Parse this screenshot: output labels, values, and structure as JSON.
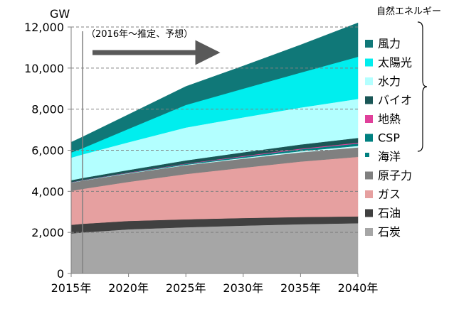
{
  "chart_data": {
    "type": "area",
    "stacked": true,
    "ylabel": "GW",
    "x": [
      2015,
      2016,
      2020,
      2025,
      2030,
      2035,
      2040
    ],
    "xtick_values": [
      2015,
      2020,
      2025,
      2030,
      2035,
      2040
    ],
    "xtick_labels": [
      "2015年",
      "2020年",
      "2025年",
      "2030年",
      "2035年",
      "2040年"
    ],
    "ylim": [
      0,
      12000
    ],
    "yticks": [
      0,
      2000,
      4000,
      6000,
      8000,
      10000,
      12000
    ],
    "ytick_labels": [
      "0",
      "2,000",
      "4,000",
      "6,000",
      "8,000",
      "10,000",
      "12,000"
    ],
    "grid": "dashed-horizontal",
    "legend_group_label": "自然エネルギー",
    "annotation": "（2016年～推定、予想）",
    "series": [
      {
        "name": "石炭",
        "color": "#a6a6a6",
        "values": [
          1950,
          2000,
          2150,
          2250,
          2330,
          2400,
          2450
        ]
      },
      {
        "name": "石油",
        "color": "#404040",
        "values": [
          420,
          420,
          410,
          390,
          370,
          350,
          330
        ]
      },
      {
        "name": "ガス",
        "color": "#e6a0a0",
        "values": [
          1650,
          1700,
          1900,
          2200,
          2450,
          2700,
          2900
        ]
      },
      {
        "name": "原子力",
        "color": "#808080",
        "values": [
          400,
          400,
          410,
          430,
          440,
          450,
          460
        ]
      },
      {
        "name": "海洋",
        "color": "#ccffff",
        "values": [
          10,
          10,
          15,
          25,
          40,
          55,
          70
        ]
      },
      {
        "name": "CSP",
        "color": "#008080",
        "values": [
          10,
          10,
          20,
          40,
          60,
          90,
          120
        ]
      },
      {
        "name": "地熱",
        "color": "#e0409a",
        "values": [
          10,
          10,
          15,
          20,
          30,
          35,
          40
        ]
      },
      {
        "name": "バイオ",
        "color": "#1a5656",
        "values": [
          90,
          100,
          120,
          150,
          180,
          200,
          230
        ]
      },
      {
        "name": "水力",
        "color": "#b3ffff",
        "values": [
          1100,
          1150,
          1350,
          1600,
          1700,
          1800,
          1900
        ]
      },
      {
        "name": "太陽光",
        "color": "#00eeee",
        "values": [
          250,
          300,
          650,
          1100,
          1400,
          1700,
          2050
        ]
      },
      {
        "name": "風力",
        "color": "#107878",
        "values": [
          500,
          550,
          700,
          900,
          1100,
          1350,
          1650
        ]
      }
    ]
  }
}
